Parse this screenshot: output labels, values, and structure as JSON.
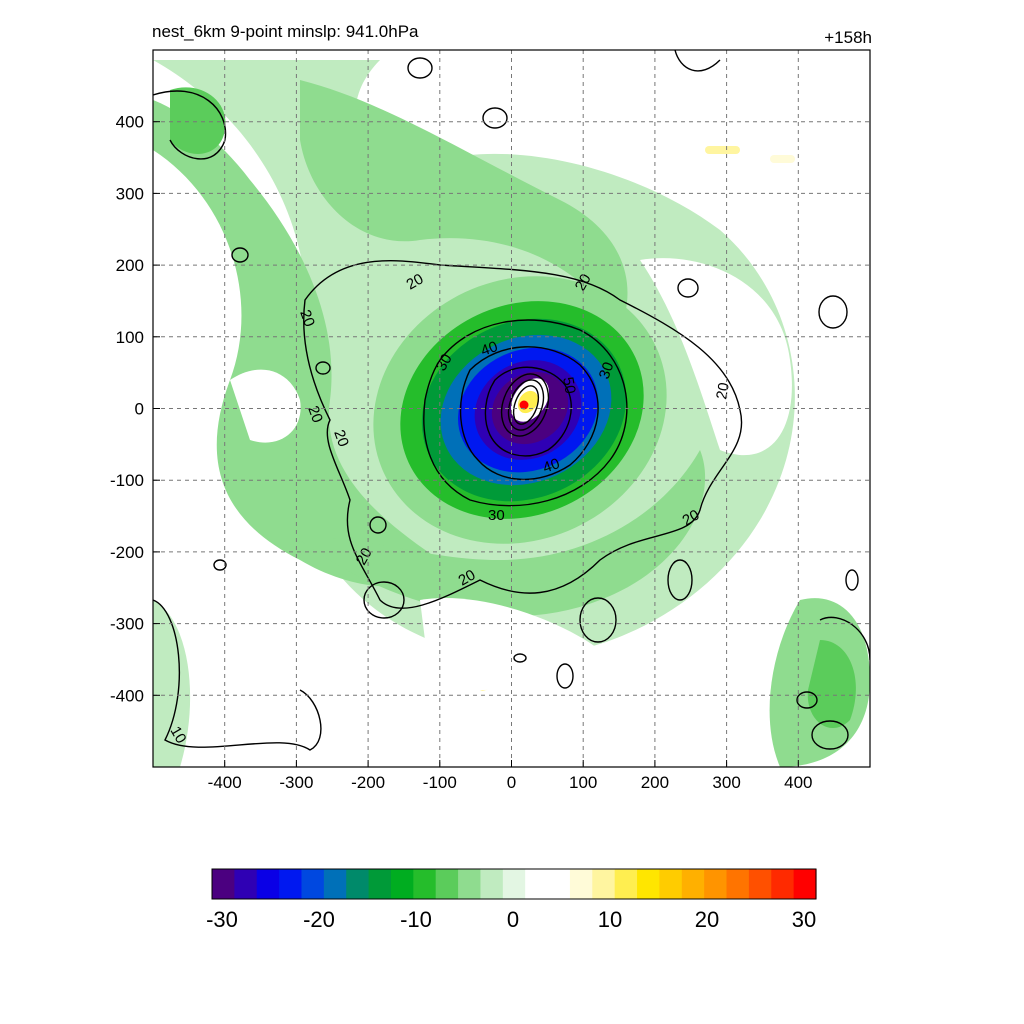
{
  "header": {
    "title": "nest_6km  9-point minslp: 941.0hPa",
    "time": "+158h"
  },
  "map": {
    "x_range": [
      -500,
      500
    ],
    "y_range": [
      -500,
      500
    ],
    "x_ticks": [
      "-400",
      "-300",
      "-200",
      "-100",
      "0",
      "100",
      "200",
      "300",
      "400"
    ],
    "y_ticks": [
      "400",
      "300",
      "200",
      "100",
      "0",
      "-100",
      "-200",
      "-300",
      "-400"
    ],
    "gridlines": "dashed",
    "center": [
      15,
      5
    ],
    "contour_labels": [
      "20",
      "20",
      "20",
      "20",
      "20",
      "20",
      "20",
      "20",
      "20",
      "30",
      "30",
      "30",
      "40",
      "40",
      "50",
      "10"
    ]
  },
  "colorbar": {
    "min": -30,
    "max": 30,
    "labels": [
      "-30",
      "-20",
      "-10",
      "0",
      "10",
      "20",
      "30"
    ],
    "colors": [
      "#4b0080",
      "#2f00b4",
      "#0a00e6",
      "#0018f0",
      "#0048e0",
      "#0070b8",
      "#008a6a",
      "#009a38",
      "#00ad20",
      "#25bd2b",
      "#5bcc5b",
      "#8fdc8f",
      "#c0ebc0",
      "#e3f6e3",
      "#ffffff",
      "#ffffff",
      "#fffbd8",
      "#fff5a0",
      "#ffee50",
      "#ffe600",
      "#ffcc00",
      "#ffb000",
      "#ff9400",
      "#ff7400",
      "#ff5000",
      "#ff2a00",
      "#ff0000"
    ]
  }
}
